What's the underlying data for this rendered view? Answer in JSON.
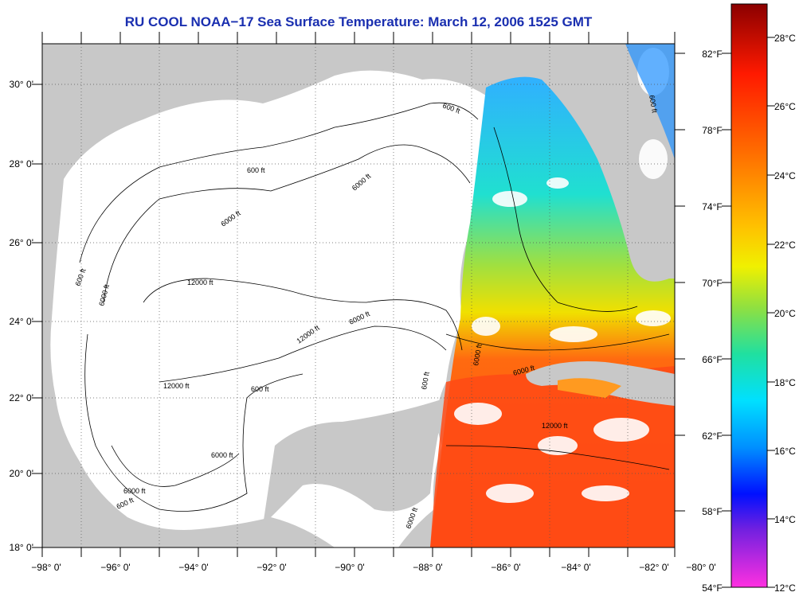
{
  "title": "RU COOL  NOAA−17  Sea Surface Temperature:  March 12, 2006 1525 GMT",
  "longitude_labels": [
    "−98° 0'",
    "−96° 0'",
    "−94° 0'",
    "−92° 0'",
    "−90° 0'",
    "−88° 0'",
    "−86° 0'",
    "−84° 0'",
    "−82° 0'",
    "−80° 0'"
  ],
  "latitude_labels": [
    "30° 0'",
    "28° 0'",
    "26° 0'",
    "24° 0'",
    "22° 0'",
    "20° 0'",
    "18° 0'"
  ],
  "fahrenheit_labels": [
    "82°F",
    "78°F",
    "74°F",
    "70°F",
    "66°F",
    "62°F",
    "58°F",
    "54°F"
  ],
  "celsius_labels": [
    "28°C",
    "26°C",
    "24°C",
    "22°C",
    "20°C",
    "18°C",
    "16°C",
    "14°C",
    "12°C"
  ],
  "contour_labels": [
    "600 ft",
    "600 ft",
    "600 ft",
    "600 ft",
    "600 ft",
    "600 ft",
    "6000 ft",
    "6000 ft",
    "6000 ft",
    "6000 ft",
    "6000 ft",
    "6000 ft",
    "6000 ft",
    "12000 ft",
    "12000 ft",
    "12000 ft",
    "12000 ft",
    "6000 ft",
    "600 ft",
    "6000 ft"
  ],
  "colors": {
    "title": "#1a2fb0",
    "land": "#c8c8c8",
    "ocean": "#ffffff"
  }
}
